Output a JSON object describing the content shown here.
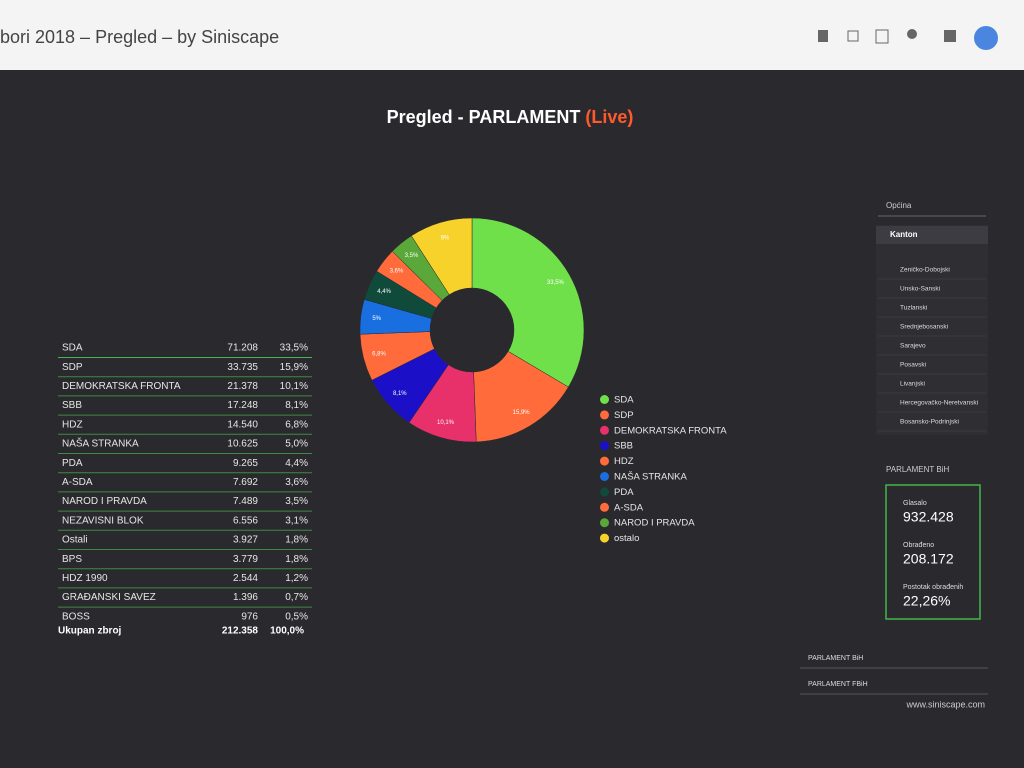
{
  "header": {
    "title": "bori 2018 – Pregled – by Siniscape"
  },
  "dashboard": {
    "title": "Pregled - PARLAMENT",
    "live": "(Live)"
  },
  "table": {
    "rows": [
      [
        "SDA",
        "71.208",
        "33,5%"
      ],
      [
        "SDP",
        "33.735",
        "15,9%"
      ],
      [
        "DEMOKRATSKA FRONTA",
        "21.378",
        "10,1%"
      ],
      [
        "SBB",
        "17.248",
        "8,1%"
      ],
      [
        "HDZ",
        "14.540",
        "6,8%"
      ],
      [
        "NAŠA STRANKA",
        "10.625",
        "5,0%"
      ],
      [
        "PDA",
        "9.265",
        "4,4%"
      ],
      [
        "A-SDA",
        "7.692",
        "3,6%"
      ],
      [
        "NAROD I PRAVDA",
        "7.489",
        "3,5%"
      ],
      [
        "NEZAVISNI BLOK",
        "6.556",
        "3,1%"
      ],
      [
        "Ostali",
        "3.927",
        "1,8%"
      ],
      [
        "BPS",
        "3.779",
        "1,8%"
      ],
      [
        "HDZ 1990",
        "2.544",
        "1,2%"
      ],
      [
        "GRAĐANSKI SAVEZ",
        "1.396",
        "0,7%"
      ],
      [
        "BOSS",
        "976",
        "0,5%"
      ]
    ],
    "total": [
      "Ukupan zbroj",
      "212.358",
      "100,0%"
    ]
  },
  "donut": {
    "type": "pie",
    "categories": [
      "SDA",
      "SDP",
      "DEMOKRATSKA FRONTA",
      "SBB",
      "HDZ",
      "NAŠA STRANKA",
      "PDA",
      "A-SDA",
      "NAROD I PRAVDA",
      "ostalo"
    ],
    "values": [
      33.5,
      15.9,
      10.1,
      8.1,
      6.8,
      5,
      4.4,
      3.6,
      3.5,
      9.1
    ],
    "value_labels": [
      "33,5%",
      "15,9%",
      "10,1%",
      "8,1%",
      "6,8%",
      "5%",
      "4,4%",
      "3,6%",
      "3,5%",
      "9%"
    ],
    "colors": [
      "#6fe04a",
      "#ff6b3b",
      "#e8306a",
      "#1b10c8",
      "#ff6b3b",
      "#1a6fe0",
      "#0f4a3a",
      "#ff6b3b",
      "#5aa83a",
      "#f6d22a"
    ]
  },
  "filter": {
    "label": "Općina",
    "selected": "Kanton",
    "options": [
      "Zeničko-Dobojski",
      "Unsko-Sanski",
      "Tuzlanski",
      "Srednjebosanski",
      "Sarajevo",
      "Posavski",
      "Livanjski",
      "Hercegovačko-Neretvanski",
      "Bosansko-Podrinjski"
    ]
  },
  "summary": {
    "title": "PARLAMENT BiH",
    "items": [
      {
        "label": "Glasalo",
        "value": "932.428"
      },
      {
        "label": "Obrađeno",
        "value": "208.172"
      },
      {
        "label": "Postotak obrađenih",
        "value": "22,26%"
      }
    ]
  },
  "selects": [
    "PARLAMENT BiH",
    "PARLAMENT FBiH"
  ],
  "footer": "www.siniscape.com"
}
